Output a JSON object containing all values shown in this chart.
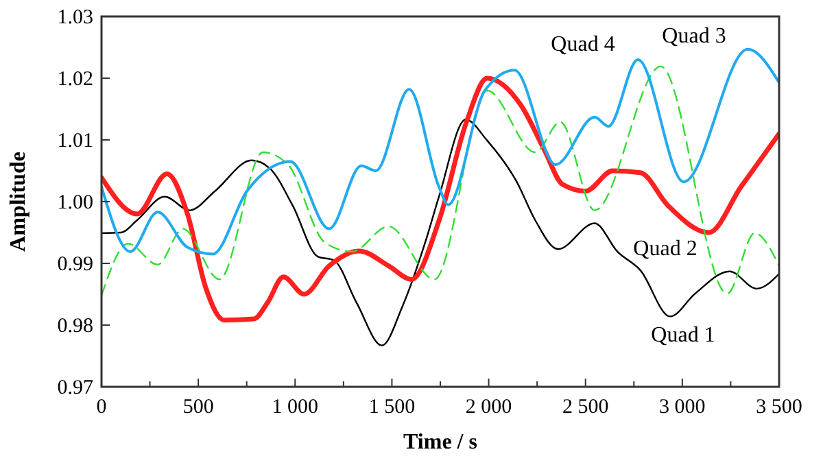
{
  "chart_data": {
    "type": "line",
    "xlabel": "Time / s",
    "ylabel": "Amplitude",
    "xlim": [
      0,
      3500
    ],
    "ylim": [
      0.97,
      1.03
    ],
    "xticks": [
      0,
      {
        "value": 250,
        "label": null
      },
      500,
      {
        "value": 750,
        "label": null
      },
      {
        "value": 1000,
        "label": "1 000"
      },
      {
        "value": 1250,
        "label": null
      },
      {
        "value": 1500,
        "label": "1 500"
      },
      {
        "value": 1750,
        "label": null
      },
      {
        "value": 2000,
        "label": "2 000"
      },
      {
        "value": 2250,
        "label": null
      },
      {
        "value": 2500,
        "label": "2 500"
      },
      {
        "value": 2750,
        "label": null
      },
      {
        "value": 3000,
        "label": "3 000"
      },
      {
        "value": 3250,
        "label": null
      },
      {
        "value": 3500,
        "label": "3 500"
      }
    ],
    "yticks": [
      {
        "value": 0.97,
        "label": "0.97"
      },
      {
        "value": 0.98,
        "label": "0.98"
      },
      {
        "value": 0.99,
        "label": "0.99"
      },
      {
        "value": 1.0,
        "label": "1.00"
      },
      {
        "value": 1.01,
        "label": "1.01"
      },
      {
        "value": 1.02,
        "label": "1.02"
      },
      {
        "value": 1.03,
        "label": "1.03"
      }
    ],
    "legend": false,
    "grid": false,
    "series": [
      {
        "name": "Quad 1",
        "color": "#000000",
        "line_style": "solid",
        "x": [
          0,
          102,
          184,
          326,
          456,
          586,
          775,
          869,
          987,
          1117,
          1200,
          1318,
          1448,
          1554,
          1672,
          1744,
          1881,
          1992,
          2145,
          2240,
          2358,
          2547,
          2665,
          2783,
          2937,
          3066,
          3244,
          3385,
          3500
        ],
        "values": [
          0.9949,
          0.995,
          0.997,
          1.0008,
          0.9986,
          1.0017,
          1.0067,
          1.0054,
          0.9994,
          0.9911,
          0.9905,
          0.9836,
          0.9767,
          0.983,
          0.9934,
          1.0009,
          1.0133,
          1.0099,
          1.0032,
          0.997,
          0.9923,
          0.9965,
          0.9919,
          0.9889,
          0.9814,
          0.9851,
          0.9887,
          0.9859,
          0.9883
        ]
      },
      {
        "name": "Quad 2",
        "color": "#ff2020",
        "line_style": "solid",
        "x": [
          0,
          184,
          338,
          444,
          539,
          633,
          787,
          857,
          940,
          1046,
          1176,
          1330,
          1483,
          1601,
          1744,
          1885,
          1992,
          2169,
          2287,
          2381,
          2500,
          2641,
          2783,
          2925,
          3137,
          3303,
          3500
        ],
        "values": [
          1.0039,
          0.998,
          1.0045,
          0.998,
          0.986,
          0.9808,
          0.981,
          0.9836,
          0.9878,
          0.985,
          0.9896,
          0.992,
          0.9896,
          0.9874,
          0.997,
          1.0129,
          1.02,
          1.0155,
          1.0084,
          1.0028,
          1.0017,
          1.005,
          1.0047,
          0.9994,
          0.995,
          1.0024,
          1.011
        ]
      },
      {
        "name": "Quad 3",
        "color": "#33dd33",
        "line_style": "dashed",
        "x": [
          0,
          137,
          290,
          420,
          609,
          834,
          963,
          1153,
          1294,
          1483,
          1720,
          1992,
          2240,
          2370,
          2547,
          2889,
          3232,
          3374,
          3500
        ],
        "values": [
          0.9848,
          0.9932,
          0.9898,
          0.9956,
          0.9874,
          1.008,
          1.006,
          0.9934,
          0.9919,
          0.996,
          0.9874,
          1.018,
          1.008,
          1.0129,
          0.9986,
          1.0219,
          0.9851,
          0.9949,
          0.9896
        ]
      },
      {
        "name": "Quad 4",
        "color": "#22aaee",
        "line_style": "solid",
        "x": [
          0,
          149,
          290,
          444,
          574,
          751,
          975,
          1176,
          1342,
          1417,
          1589,
          1743,
          1791,
          1980,
          2133,
          2346,
          2547,
          2618,
          2771,
          3007,
          3338,
          3500
        ],
        "values": [
          1.0024,
          0.9919,
          0.9983,
          0.9926,
          0.9915,
          1.0017,
          1.0065,
          0.9956,
          1.0058,
          1.005,
          1.0182,
          1.0024,
          0.9995,
          1.018,
          1.0213,
          1.006,
          1.0137,
          1.0122,
          1.023,
          1.0032,
          1.0247,
          1.0193
        ]
      }
    ]
  }
}
